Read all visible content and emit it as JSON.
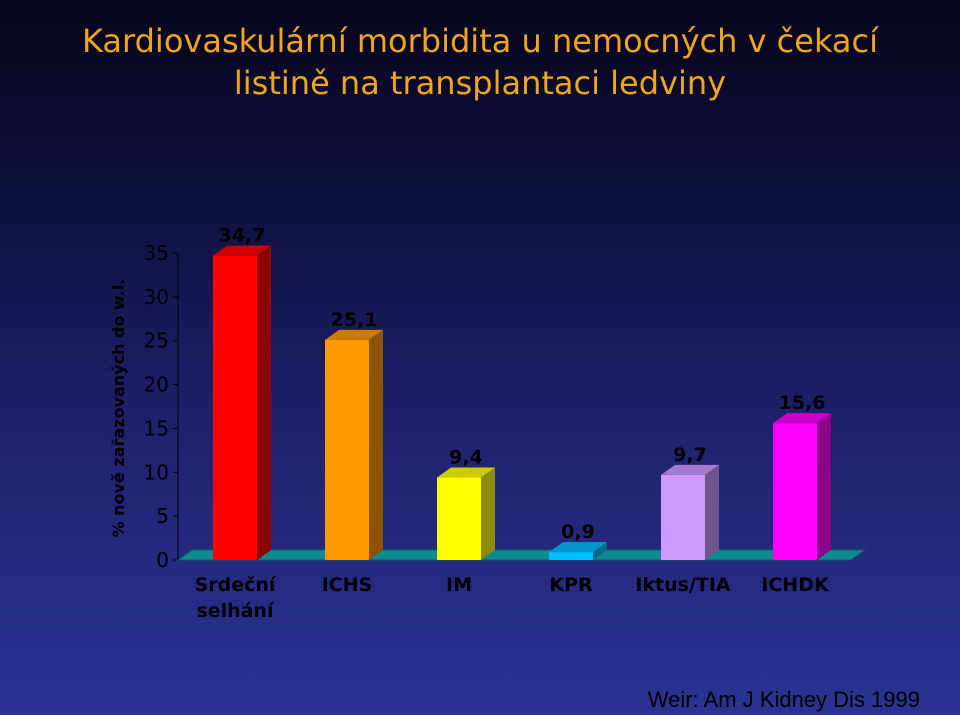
{
  "title_line1": "Kardiovaskulární morbidita u nemocných v čekací",
  "title_line2": "listině na transplantaci ledviny",
  "source": "Weir: Am J Kidney Dis 1999",
  "chart_data": {
    "type": "bar",
    "title": "Kardiovaskulární morbidita u nemocných v čekací listině na transplantaci ledviny",
    "ylabel": "% nově zařazovaných do w.l.",
    "xlabel": "",
    "ylim": [
      0,
      35
    ],
    "yticks": [
      "0",
      "5",
      "10",
      "15",
      "20",
      "25",
      "30",
      "35"
    ],
    "categories": [
      [
        "Srdeční",
        "selhání"
      ],
      [
        "ICHS"
      ],
      [
        "IM"
      ],
      [
        "KPR"
      ],
      [
        "Iktus/TIA"
      ],
      [
        "ICHDK"
      ]
    ],
    "values": [
      34.7,
      25.1,
      9.4,
      0.9,
      9.7,
      15.6
    ],
    "value_labels": [
      "34,7",
      "25,1",
      "9,4",
      "0,9",
      "9,7",
      "15,6"
    ],
    "colors": [
      "#ff0000",
      "#ff9900",
      "#ffff00",
      "#00bfff",
      "#cc99ff",
      "#ff00ff"
    ],
    "floor_color": "#0f8a90",
    "grid": false,
    "style": "3d"
  }
}
